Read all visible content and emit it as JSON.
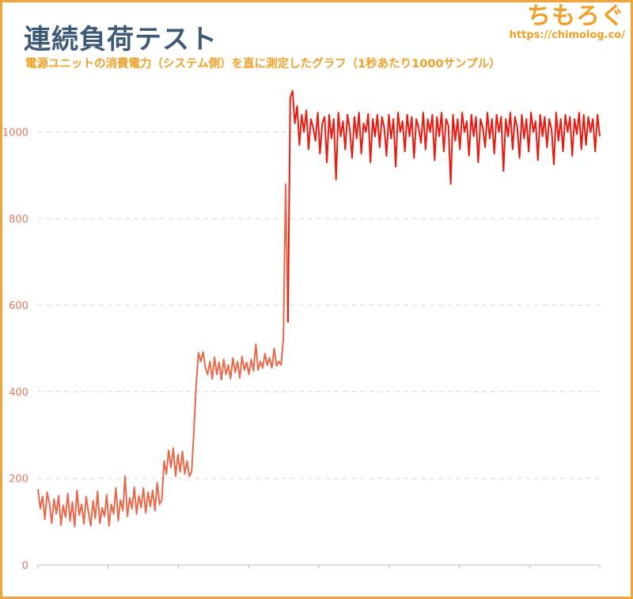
{
  "title": "連続負荷テスト",
  "subtitle": "電源ユニットの消費電力（システム側）を直に測定したグラフ（1秒あたり1000サンプル）",
  "brand": {
    "name": "ちもろぐ",
    "url": "https://chimolog.co/"
  },
  "colors": {
    "frame": "#f2a33a",
    "title": "#3d5a78",
    "accent": "#f0a028",
    "line_low": "#e8694a",
    "line_high": "#e81a10",
    "grid": "#d8d8d8",
    "tick": "#e07860"
  },
  "chart_data": {
    "type": "line",
    "title": "",
    "xlabel": "",
    "ylabel": "",
    "ylim": [
      0,
      1100
    ],
    "yticks": [
      0,
      200,
      400,
      600,
      800,
      1000
    ],
    "grid": true,
    "series": [
      {
        "points": [
          [
            0,
            175
          ],
          [
            1,
            130
          ],
          [
            2,
            158
          ],
          [
            3,
            105
          ],
          [
            4,
            168
          ],
          [
            5,
            142
          ],
          [
            6,
            96
          ],
          [
            7,
            152
          ],
          [
            8,
            118
          ],
          [
            9,
            160
          ],
          [
            10,
            92
          ],
          [
            11,
            138
          ],
          [
            12,
            110
          ],
          [
            13,
            165
          ],
          [
            14,
            101
          ],
          [
            15,
            145
          ],
          [
            16,
            88
          ],
          [
            17,
            172
          ],
          [
            18,
            115
          ],
          [
            19,
            140
          ],
          [
            20,
            95
          ],
          [
            21,
            158
          ],
          [
            22,
            122
          ],
          [
            23,
            90
          ],
          [
            24,
            148
          ],
          [
            25,
            108
          ],
          [
            26,
            170
          ],
          [
            27,
            96
          ],
          [
            28,
            132
          ],
          [
            29,
            112
          ],
          [
            30,
            162
          ],
          [
            31,
            90
          ],
          [
            32,
            140
          ],
          [
            33,
            118
          ],
          [
            34,
            178
          ],
          [
            35,
            102
          ],
          [
            36,
            150
          ],
          [
            37,
            125
          ],
          [
            38,
            205
          ],
          [
            39,
            112
          ],
          [
            40,
            155
          ],
          [
            41,
            130
          ],
          [
            42,
            180
          ],
          [
            43,
            118
          ],
          [
            44,
            160
          ],
          [
            45,
            132
          ],
          [
            46,
            178
          ],
          [
            47,
            120
          ],
          [
            48,
            168
          ],
          [
            49,
            135
          ],
          [
            50,
            172
          ],
          [
            51,
            125
          ],
          [
            52,
            190
          ],
          [
            53,
            140
          ],
          [
            54,
            150
          ],
          [
            55,
            240
          ],
          [
            56,
            210
          ],
          [
            57,
            265
          ],
          [
            58,
            225
          ],
          [
            59,
            270
          ],
          [
            60,
            205
          ],
          [
            61,
            255
          ],
          [
            62,
            215
          ],
          [
            63,
            262
          ],
          [
            64,
            210
          ],
          [
            65,
            240
          ],
          [
            66,
            205
          ],
          [
            67,
            215
          ],
          [
            68,
            310
          ],
          [
            69,
            420
          ],
          [
            70,
            490
          ],
          [
            71,
            470
          ],
          [
            72,
            492
          ],
          [
            73,
            455
          ],
          [
            74,
            440
          ],
          [
            75,
            470
          ],
          [
            76,
            430
          ],
          [
            77,
            480
          ],
          [
            78,
            440
          ],
          [
            79,
            468
          ],
          [
            80,
            428
          ],
          [
            81,
            475
          ],
          [
            82,
            440
          ],
          [
            83,
            462
          ],
          [
            84,
            430
          ],
          [
            85,
            478
          ],
          [
            86,
            445
          ],
          [
            87,
            470
          ],
          [
            88,
            432
          ],
          [
            89,
            482
          ],
          [
            90,
            450
          ],
          [
            91,
            468
          ],
          [
            92,
            440
          ],
          [
            93,
            475
          ],
          [
            94,
            448
          ],
          [
            95,
            510
          ],
          [
            96,
            450
          ],
          [
            97,
            470
          ],
          [
            98,
            455
          ],
          [
            99,
            488
          ],
          [
            100,
            462
          ],
          [
            101,
            478
          ],
          [
            102,
            455
          ],
          [
            103,
            500
          ],
          [
            104,
            460
          ],
          [
            105,
            470
          ],
          [
            106,
            462
          ],
          [
            107,
            520
          ],
          [
            108,
            880
          ],
          [
            109,
            560
          ],
          [
            110,
            1080
          ],
          [
            111,
            1095
          ],
          [
            112,
            1020
          ],
          [
            113,
            1060
          ],
          [
            114,
            970
          ],
          [
            115,
            1040
          ],
          [
            116,
            1000
          ],
          [
            117,
            1050
          ],
          [
            118,
            960
          ],
          [
            119,
            1030
          ],
          [
            120,
            1010
          ],
          [
            121,
            980
          ],
          [
            122,
            1045
          ],
          [
            123,
            950
          ],
          [
            124,
            1020
          ],
          [
            125,
            1035
          ],
          [
            126,
            930
          ],
          [
            127,
            1040
          ],
          [
            128,
            985
          ],
          [
            129,
            1030
          ],
          [
            130,
            890
          ],
          [
            131,
            1045
          ],
          [
            132,
            990
          ],
          [
            133,
            1025
          ],
          [
            134,
            960
          ],
          [
            135,
            1040
          ],
          [
            136,
            1005
          ],
          [
            137,
            940
          ],
          [
            138,
            1035
          ],
          [
            139,
            985
          ],
          [
            140,
            1045
          ],
          [
            141,
            950
          ],
          [
            142,
            1020
          ],
          [
            143,
            1000
          ],
          [
            144,
            1042
          ],
          [
            145,
            930
          ],
          [
            146,
            1030
          ],
          [
            147,
            990
          ],
          [
            148,
            1040
          ],
          [
            149,
            965
          ],
          [
            150,
            1035
          ],
          [
            151,
            1010
          ],
          [
            152,
            945
          ],
          [
            153,
            1040
          ],
          [
            154,
            985
          ],
          [
            155,
            1030
          ],
          [
            156,
            920
          ],
          [
            157,
            1045
          ],
          [
            158,
            1000
          ],
          [
            159,
            1025
          ],
          [
            160,
            955
          ],
          [
            161,
            1040
          ],
          [
            162,
            990
          ],
          [
            163,
            1035
          ],
          [
            164,
            940
          ],
          [
            165,
            1030
          ],
          [
            166,
            1010
          ],
          [
            167,
            975
          ],
          [
            168,
            1045
          ],
          [
            169,
            960
          ],
          [
            170,
            1030
          ],
          [
            171,
            1000
          ],
          [
            172,
            1040
          ],
          [
            173,
            935
          ],
          [
            174,
            1035
          ],
          [
            175,
            990
          ],
          [
            176,
            1045
          ],
          [
            177,
            955
          ],
          [
            178,
            1030
          ],
          [
            179,
            1015
          ],
          [
            180,
            880
          ],
          [
            181,
            1040
          ],
          [
            182,
            980
          ],
          [
            183,
            1030
          ],
          [
            184,
            960
          ],
          [
            185,
            1045
          ],
          [
            186,
            1000
          ],
          [
            187,
            1025
          ],
          [
            188,
            945
          ],
          [
            189,
            1040
          ],
          [
            190,
            990
          ],
          [
            191,
            1035
          ],
          [
            192,
            930
          ],
          [
            193,
            1030
          ],
          [
            194,
            1010
          ],
          [
            195,
            965
          ],
          [
            196,
            1045
          ],
          [
            197,
            985
          ],
          [
            198,
            1030
          ],
          [
            199,
            950
          ],
          [
            200,
            1040
          ],
          [
            201,
            1000
          ],
          [
            202,
            1035
          ],
          [
            203,
            910
          ],
          [
            204,
            1030
          ],
          [
            205,
            990
          ],
          [
            206,
            1045
          ],
          [
            207,
            960
          ],
          [
            208,
            1035
          ],
          [
            209,
            1010
          ],
          [
            210,
            940
          ],
          [
            211,
            1040
          ],
          [
            212,
            985
          ],
          [
            213,
            1030
          ],
          [
            214,
            955
          ],
          [
            215,
            1045
          ],
          [
            216,
            1000
          ],
          [
            217,
            1025
          ],
          [
            218,
            935
          ],
          [
            219,
            1040
          ],
          [
            220,
            990
          ],
          [
            221,
            1035
          ],
          [
            222,
            965
          ],
          [
            223,
            1030
          ],
          [
            224,
            1005
          ],
          [
            225,
            925
          ],
          [
            226,
            1045
          ],
          [
            227,
            980
          ],
          [
            228,
            1030
          ],
          [
            229,
            955
          ],
          [
            230,
            1040
          ],
          [
            231,
            1000
          ],
          [
            232,
            1035
          ],
          [
            233,
            945
          ],
          [
            234,
            1030
          ],
          [
            235,
            995
          ],
          [
            236,
            1045
          ],
          [
            237,
            960
          ],
          [
            238,
            1040
          ],
          [
            239,
            970
          ],
          [
            240,
            1035
          ],
          [
            241,
            1000
          ],
          [
            242,
            1030
          ],
          [
            243,
            955
          ],
          [
            244,
            1040
          ],
          [
            245,
            990
          ]
        ]
      }
    ],
    "x_range": [
      0,
      245
    ],
    "x_tick_count": 8
  }
}
